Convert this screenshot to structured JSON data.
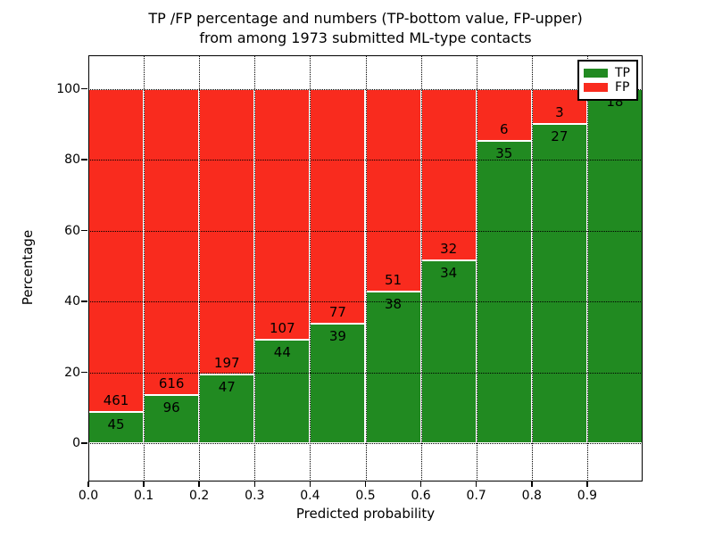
{
  "title": {
    "line1": "TP /FP percentage and numbers (TP-bottom value, FP-upper)",
    "line2": "from among 1973 submitted ML-type contacts"
  },
  "axes": {
    "xlabel": "Predicted probability",
    "ylabel": "Percentage",
    "xticks": [
      "0.0",
      "0.1",
      "0.2",
      "0.3",
      "0.4",
      "0.5",
      "0.6",
      "0.7",
      "0.8",
      "0.9"
    ],
    "yticks": [
      "0",
      "20",
      "40",
      "60",
      "80",
      "100"
    ]
  },
  "legend": {
    "items": [
      {
        "label": "TP",
        "color": "#218a21"
      },
      {
        "label": "FP",
        "color": "#f92b1e"
      }
    ]
  },
  "colors": {
    "tp_green": "#218a21",
    "fp_red": "#f92b1e",
    "text": "#000000",
    "background": "#ffffff"
  },
  "chart_data": {
    "type": "bar",
    "stacked": true,
    "normalized": "percent",
    "title": "TP /FP percentage and numbers (TP-bottom value, FP-upper) from among 1973 submitted ML-type contacts",
    "xlabel": "Predicted probability",
    "ylabel": "Percentage",
    "x_bin_starts": [
      0.0,
      0.1,
      0.2,
      0.3,
      0.4,
      0.5,
      0.6,
      0.7,
      0.8,
      0.9
    ],
    "bin_width": 0.1,
    "series": [
      {
        "name": "TP",
        "color": "#218a21",
        "counts": [
          45,
          96,
          47,
          44,
          39,
          38,
          34,
          35,
          27,
          18
        ]
      },
      {
        "name": "FP",
        "color": "#f92b1e",
        "counts": [
          461,
          616,
          197,
          107,
          77,
          51,
          32,
          6,
          3,
          0
        ]
      }
    ],
    "tp_percent_heights": [
      8.9,
      13.5,
      19.3,
      29.1,
      33.6,
      42.7,
      51.5,
      85.4,
      90.0,
      100.0
    ],
    "total_contacts": 1973,
    "xlim": [
      0.0,
      1.0
    ],
    "ylim_percent": [
      0,
      100
    ],
    "grid": "dotted",
    "legend_position": "upper right"
  }
}
